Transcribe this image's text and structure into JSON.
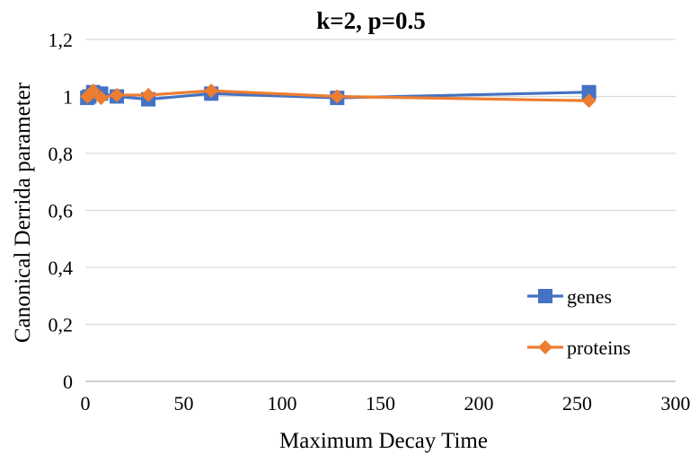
{
  "chart_data": {
    "type": "line",
    "title": "k=2, p=0.5",
    "xlabel": "Maximum Decay Time",
    "ylabel": "Canonical Derrida parameter",
    "xlim": [
      0,
      300
    ],
    "ylim": [
      0,
      1.2
    ],
    "x_ticks": [
      "0",
      "50",
      "100",
      "150",
      "200",
      "250",
      "300"
    ],
    "y_ticks": [
      "0",
      "0,2",
      "0,4",
      "0,6",
      "0,8",
      "1",
      "1,2"
    ],
    "grid": "horizontal",
    "legend_position": "bottom-right",
    "series": [
      {
        "name": "genes",
        "color": "#4472C4",
        "marker": "square",
        "x": [
          1,
          2,
          4,
          8,
          16,
          32,
          64,
          128,
          256
        ],
        "y": [
          0.995,
          1.0,
          1.015,
          1.01,
          1.0,
          0.99,
          1.01,
          0.995,
          1.015
        ]
      },
      {
        "name": "proteins",
        "color": "#ED7D31",
        "marker": "diamond",
        "x": [
          1,
          2,
          4,
          8,
          16,
          32,
          64,
          128,
          256
        ],
        "y": [
          1.0,
          1.005,
          1.02,
          0.995,
          1.005,
          1.005,
          1.02,
          1.0,
          0.985
        ]
      }
    ]
  }
}
